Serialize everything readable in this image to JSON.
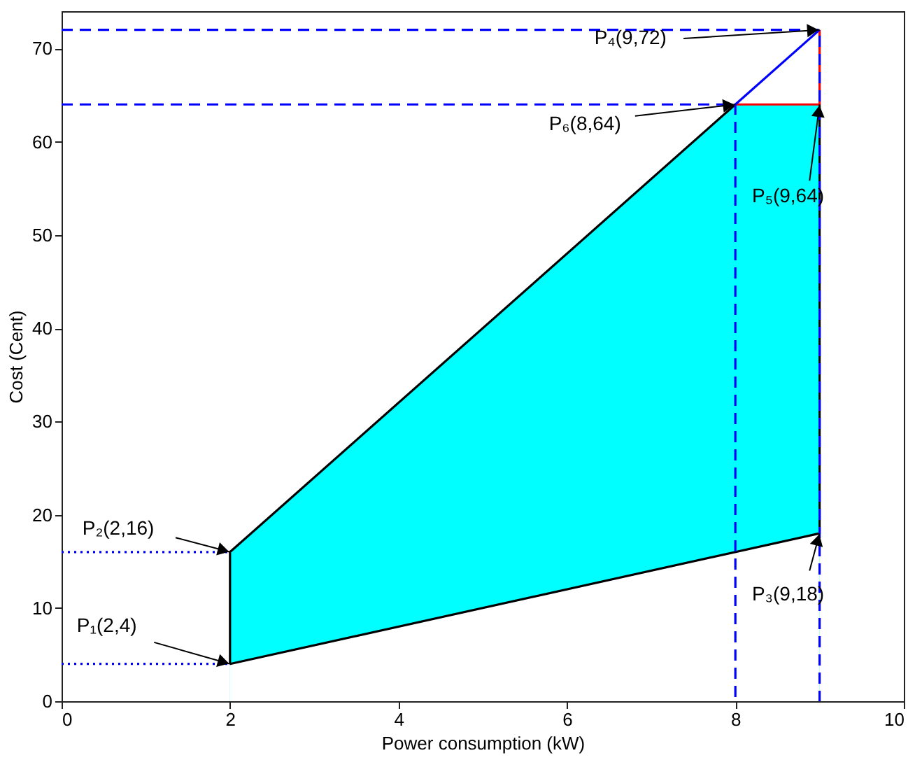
{
  "chart_data": {
    "type": "line",
    "xlabel": "Power consumption (kW)",
    "ylabel": "Cost (Cent)",
    "xlim": [
      0,
      10
    ],
    "ylim": [
      0,
      74
    ],
    "xticks": [
      0,
      2,
      4,
      6,
      8,
      10
    ],
    "yticks": [
      0,
      10,
      20,
      30,
      40,
      50,
      60,
      70
    ],
    "grid": false,
    "series": [
      {
        "type": "area",
        "color": "#00ffff",
        "x": [
          2,
          8,
          9
        ],
        "values": [
          16,
          64,
          64
        ]
      },
      {
        "type": "area",
        "color": "#ffffff",
        "x": [
          2,
          9
        ],
        "values": [
          4,
          18
        ]
      },
      {
        "color": "#000000",
        "line_style": "solid",
        "x": [
          2,
          2,
          8
        ],
        "values": [
          4,
          16,
          64
        ]
      },
      {
        "color": "#000000",
        "line_style": "solid",
        "x": [
          2,
          9,
          9
        ],
        "values": [
          4,
          18,
          64
        ]
      },
      {
        "color": "#ff0000",
        "line_style": "solid",
        "x": [
          8,
          9,
          9
        ],
        "values": [
          64,
          64,
          72
        ]
      },
      {
        "color": "#0000ff",
        "line_style": "solid",
        "x": [
          8,
          9
        ],
        "values": [
          64,
          72
        ]
      },
      {
        "color": "#0000ff",
        "line_style": "dashed",
        "x": [
          0,
          9,
          9
        ],
        "values": [
          72,
          72,
          0
        ]
      },
      {
        "color": "#0000ff",
        "line_style": "dashed",
        "x": [
          0,
          8,
          8
        ],
        "values": [
          64,
          64,
          0
        ]
      },
      {
        "color": "#0000ff",
        "line_style": "dotted",
        "x": [
          0,
          2
        ],
        "values": [
          16,
          16
        ]
      },
      {
        "color": "#0000ff",
        "line_style": "dotted",
        "x": [
          0,
          2
        ],
        "values": [
          4,
          4
        ]
      }
    ],
    "annotations": [
      {
        "text": "P₁(2,4)",
        "x": 2,
        "y": 4
      },
      {
        "text": "P₂(2,16)",
        "x": 2,
        "y": 16
      },
      {
        "text": "P₃(9,18)",
        "x": 9,
        "y": 18
      },
      {
        "text": "P₄(9,72)",
        "x": 9,
        "y": 72
      },
      {
        "text": "P₅(9,64)",
        "x": 9,
        "y": 64
      },
      {
        "text": "P₆(8,64)",
        "x": 8,
        "y": 64
      }
    ]
  }
}
